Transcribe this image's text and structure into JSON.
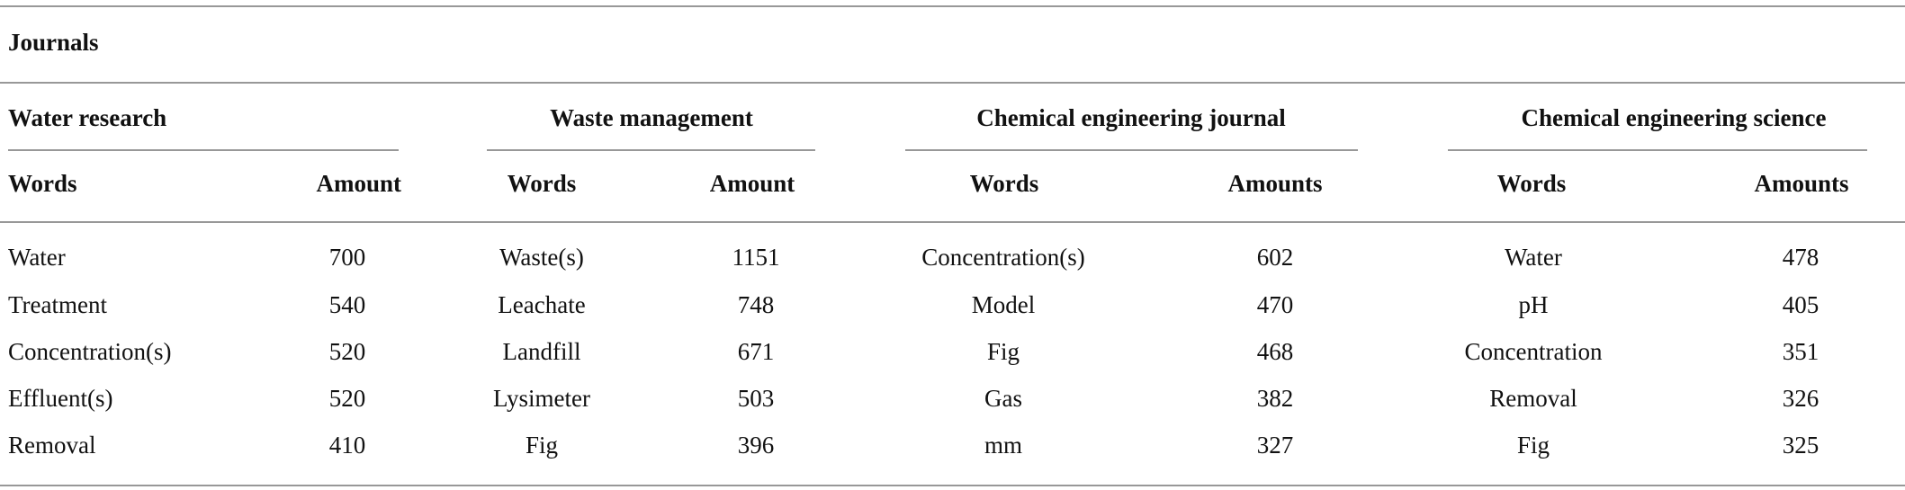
{
  "table": {
    "title": "Journals",
    "groups": [
      {
        "name": "Water research",
        "columns": [
          "Words",
          "Amount"
        ],
        "rows": [
          [
            "Water",
            700
          ],
          [
            "Treatment",
            540
          ],
          [
            "Concentration(s)",
            520
          ],
          [
            "Effluent(s)",
            520
          ],
          [
            "Removal",
            410
          ]
        ]
      },
      {
        "name": "Waste management",
        "columns": [
          "Words",
          "Amount"
        ],
        "rows": [
          [
            "Waste(s)",
            1151
          ],
          [
            "Leachate",
            748
          ],
          [
            "Landfill",
            671
          ],
          [
            "Lysimeter",
            503
          ],
          [
            "Fig",
            396
          ]
        ]
      },
      {
        "name": "Chemical engineering journal",
        "columns": [
          "Words",
          "Amounts"
        ],
        "rows": [
          [
            "Concentration(s)",
            602
          ],
          [
            "Model",
            470
          ],
          [
            "Fig",
            468
          ],
          [
            "Gas",
            382
          ],
          [
            "mm",
            327
          ]
        ]
      },
      {
        "name": "Chemical engineering science",
        "columns": [
          "Words",
          "Amounts"
        ],
        "rows": [
          [
            "Water",
            478
          ],
          [
            "pH",
            405
          ],
          [
            "Concentration",
            351
          ],
          [
            "Removal",
            326
          ],
          [
            "Fig",
            325
          ]
        ]
      }
    ]
  }
}
